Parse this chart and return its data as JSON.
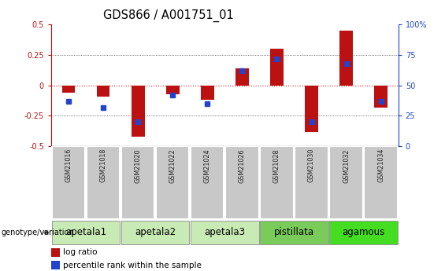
{
  "title": "GDS866 / A001751_01",
  "samples": [
    "GSM21016",
    "GSM21018",
    "GSM21020",
    "GSM21022",
    "GSM21024",
    "GSM21026",
    "GSM21028",
    "GSM21030",
    "GSM21032",
    "GSM21034"
  ],
  "log_ratio": [
    -0.06,
    -0.09,
    -0.42,
    -0.07,
    -0.12,
    0.14,
    0.3,
    -0.38,
    0.45,
    -0.18
  ],
  "percentile_rank_raw": [
    37,
    32,
    20,
    42,
    35,
    62,
    72,
    20,
    68,
    37
  ],
  "groups": [
    {
      "label": "apetala1",
      "indices": [
        0,
        1
      ],
      "color": "#c8eab4"
    },
    {
      "label": "apetala2",
      "indices": [
        2,
        3
      ],
      "color": "#c8eab4"
    },
    {
      "label": "apetala3",
      "indices": [
        4,
        5
      ],
      "color": "#c8eab4"
    },
    {
      "label": "pistillata",
      "indices": [
        6,
        7
      ],
      "color": "#7acc5a"
    },
    {
      "label": "agamous",
      "indices": [
        8,
        9
      ],
      "color": "#44dd22"
    }
  ],
  "ylim_left": [
    -0.5,
    0.5
  ],
  "ylim_right": [
    0,
    100
  ],
  "yticks_left": [
    -0.5,
    -0.25,
    0.0,
    0.25,
    0.5
  ],
  "yticks_right": [
    0,
    25,
    50,
    75,
    100
  ],
  "bar_color_red": "#bb1111",
  "bar_color_blue": "#2244cc",
  "hline_color": "#cc2222",
  "dotted_color": "#444444",
  "sample_box_color": "#c8c8c8",
  "title_fontsize": 10.5,
  "tick_fontsize": 7,
  "group_fontsize": 8.5,
  "legend_fontsize": 7.5,
  "bar_width": 0.38,
  "fig_width": 5.65,
  "fig_height": 3.45,
  "dpi": 100
}
